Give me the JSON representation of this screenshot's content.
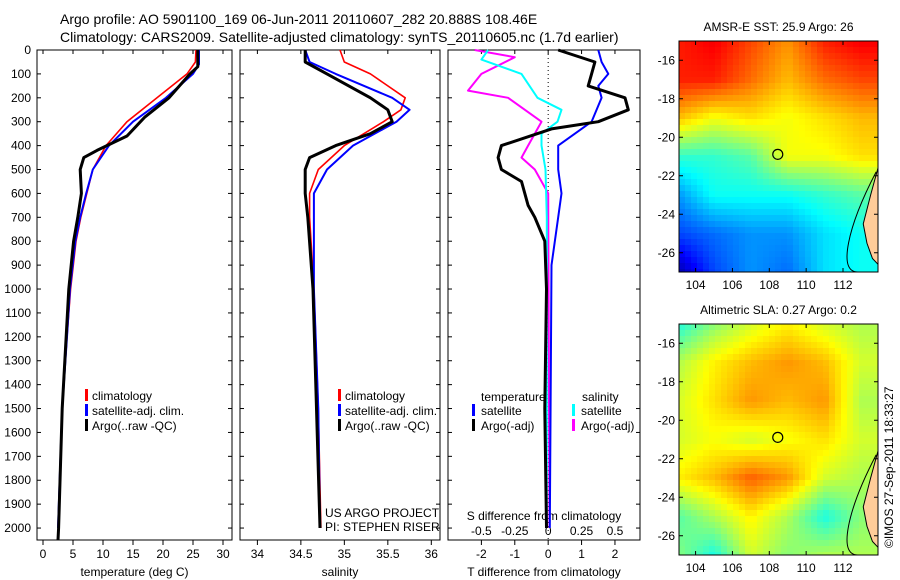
{
  "header": {
    "line1": "Argo profile: AO 5901100_169 06-Jun-2011 20110607_282 20.888S 108.46E",
    "line2": "Climatology: CARS2009. Satellite-adjusted climatology: synTS_20110605.nc (1.7d earlier)"
  },
  "footer_stamp": "©IMOS 27-Sep-2011 18:33:27",
  "colors": {
    "climatology": "#ff0000",
    "satellite": "#0000ff",
    "argo": "#000000",
    "s_satellite": "#00ffff",
    "s_argo": "#ff00ff"
  },
  "chart_data": [
    {
      "type": "line",
      "id": "temperature",
      "xlabel": "temperature (deg C)",
      "ylabel": "",
      "xlim": [
        -1,
        31.5
      ],
      "ylim": [
        2050,
        0
      ],
      "xticks": [
        "0",
        "5",
        "10",
        "15",
        "20",
        "25",
        "30"
      ],
      "yticks": [
        "0",
        "100",
        "200",
        "300",
        "400",
        "500",
        "600",
        "700",
        "800",
        "900",
        "1000",
        "1100",
        "1200",
        "1300",
        "1400",
        "1500",
        "1600",
        "1700",
        "1800",
        "1900",
        "2000"
      ],
      "legend": [
        "climatology",
        "satellite-adj. clim.",
        "Argo(..raw -QC)"
      ],
      "series": [
        {
          "name": "climatology",
          "color": "#ff0000",
          "depth": [
            0,
            50,
            100,
            200,
            300,
            400,
            500,
            600,
            700,
            800,
            1000,
            1200,
            1500,
            2000
          ],
          "values": [
            25.5,
            25.4,
            24,
            19,
            14,
            10.5,
            8.3,
            7.3,
            6.3,
            5.5,
            4.6,
            4,
            3.2,
            2.5
          ]
        },
        {
          "name": "satellite-adj. clim.",
          "color": "#0000ff",
          "depth": [
            0,
            60,
            100,
            200,
            300,
            400,
            500,
            600,
            700,
            800,
            1000,
            1200,
            1500,
            2000
          ],
          "values": [
            26,
            26,
            25,
            20.5,
            15,
            11,
            8.3,
            7.2,
            6.2,
            5.4,
            4.5,
            4,
            3.2,
            2.5
          ]
        },
        {
          "name": "Argo(..raw -QC)",
          "color": "#000000",
          "depth": [
            0,
            70,
            100,
            200,
            280,
            360,
            420,
            450,
            500,
            600,
            700,
            800,
            1000,
            1500,
            2000,
            2050
          ],
          "values": [
            25.8,
            25.8,
            24.5,
            21,
            17,
            14,
            9,
            6.8,
            6.2,
            6.4,
            5.8,
            5.1,
            4.3,
            3.2,
            2.6,
            2.5
          ]
        }
      ]
    },
    {
      "type": "line",
      "id": "salinity",
      "xlabel": "salinity",
      "xlim": [
        33.8,
        36.1
      ],
      "ylim": [
        2050,
        0
      ],
      "xticks": [
        "34",
        "34.5",
        "35",
        "35.5",
        "36"
      ],
      "legend": [
        "climatology",
        "satellite-adj. clim.",
        "Argo(..raw -QC)"
      ],
      "annotation": [
        "US ARGO PROJECT",
        "PI: STEPHEN RISER"
      ],
      "series": [
        {
          "name": "climatology",
          "color": "#ff0000",
          "depth": [
            0,
            50,
            100,
            200,
            250,
            300,
            400,
            500,
            600,
            700,
            1000,
            1500,
            2000
          ],
          "values": [
            34.95,
            35.0,
            35.3,
            35.7,
            35.65,
            35.45,
            35.0,
            34.7,
            34.6,
            34.6,
            34.65,
            34.7,
            34.73
          ]
        },
        {
          "name": "satellite-adj. clim.",
          "color": "#0000ff",
          "depth": [
            0,
            50,
            100,
            200,
            250,
            300,
            400,
            500,
            600,
            1000,
            1500,
            2000
          ],
          "values": [
            34.55,
            34.6,
            34.9,
            35.55,
            35.75,
            35.6,
            35.1,
            34.8,
            34.65,
            34.65,
            34.7,
            34.72
          ]
        },
        {
          "name": "Argo(..raw -QC)",
          "color": "#000000",
          "depth": [
            0,
            50,
            100,
            200,
            250,
            300,
            350,
            400,
            450,
            500,
            600,
            700,
            1000,
            2000
          ],
          "values": [
            34.55,
            34.55,
            34.8,
            35.3,
            35.5,
            35.55,
            35.3,
            34.9,
            34.6,
            34.55,
            34.55,
            34.58,
            34.64,
            34.72
          ]
        }
      ]
    },
    {
      "type": "line",
      "id": "differences",
      "xlabel": "T difference from climatology",
      "x2label": "S difference from climatology",
      "xlim": [
        -3,
        2.75
      ],
      "ylim": [
        2050,
        0
      ],
      "xticks": [
        "-2",
        "-1",
        "0",
        "1",
        "2"
      ],
      "x2ticks": [
        "-0.5",
        "-0.25",
        "0",
        "0.25",
        "0.5"
      ],
      "legend": {
        "temperature_title": "temperature",
        "salinity_title": "salinity",
        "items": [
          "satellite",
          "Argo(-adj)",
          "satellite",
          "Argo(-adj)"
        ]
      },
      "series": [
        {
          "name": "T satellite",
          "color": "#0000ff",
          "scale": "T",
          "depth": [
            0,
            50,
            100,
            150,
            200,
            300,
            400,
            500,
            600,
            700,
            900,
            2000
          ],
          "values": [
            1.5,
            1.6,
            1.8,
            1.5,
            1.6,
            1.3,
            0.3,
            0.3,
            0.4,
            0.3,
            0.1,
            0.05
          ]
        },
        {
          "name": "T Argo(-adj)",
          "color": "#000000",
          "scale": "T",
          "depth": [
            0,
            50,
            100,
            150,
            200,
            250,
            300,
            330,
            400,
            450,
            500,
            550,
            650,
            700,
            800,
            1000,
            1500,
            2000
          ],
          "values": [
            0.3,
            1.4,
            1.3,
            1.2,
            2.3,
            2.4,
            1.5,
            0.1,
            -1.4,
            -1.5,
            -1.4,
            -0.8,
            -0.6,
            -0.4,
            -0.1,
            -0.05,
            -0.1,
            -0.05
          ]
        },
        {
          "name": "S satellite",
          "color": "#00ffff",
          "scale": "S",
          "depth": [
            0,
            40,
            100,
            200,
            250,
            300,
            350,
            400,
            500,
            700,
            2000
          ],
          "values": [
            -0.45,
            -0.5,
            -0.2,
            -0.08,
            0.1,
            0.07,
            -0.05,
            -0.05,
            -0.02,
            -0.01,
            -0.01
          ]
        },
        {
          "name": "S Argo(-adj)",
          "color": "#ff00ff",
          "scale": "S",
          "depth": [
            0,
            30,
            100,
            170,
            200,
            300,
            400,
            450,
            500,
            600,
            2000
          ],
          "values": [
            -0.55,
            -0.25,
            -0.5,
            -0.6,
            -0.3,
            -0.05,
            -0.15,
            -0.2,
            -0.1,
            0,
            0.01
          ]
        }
      ]
    },
    {
      "type": "heatmap",
      "id": "sst_map",
      "title": "AMSR-E SST: 25.9 Argo: 26",
      "lon": [
        103,
        105,
        107,
        109,
        111,
        113
      ],
      "lat": [
        -15,
        -17,
        -19,
        -21,
        -23,
        -25,
        -27
      ],
      "xticks": [
        "104",
        "106",
        "108",
        "110",
        "112"
      ],
      "yticks": [
        "-16",
        "-18",
        "-20",
        "-22",
        "-24",
        "-26"
      ],
      "xlim": [
        103.1,
        113.9
      ],
      "ylim": [
        -27,
        -15
      ],
      "clim": [
        24.4,
        27.0
      ],
      "argo_position": {
        "lon": 108.46,
        "lat": -20.888
      },
      "values": [
        [
          26.6,
          26.7,
          26.5,
          26.3,
          26.6,
          26.7
        ],
        [
          26.6,
          26.6,
          26.4,
          26.2,
          26.4,
          26.5
        ],
        [
          26.2,
          26.0,
          26.1,
          26.0,
          26.1,
          26.2
        ],
        [
          25.5,
          25.5,
          25.6,
          26.0,
          26.0,
          26.1
        ],
        [
          25.1,
          25.4,
          25.4,
          25.4,
          25.5,
          25.6
        ],
        [
          24.9,
          25.0,
          25.1,
          25.1,
          25.3,
          25.4
        ],
        [
          24.5,
          24.9,
          25.1,
          25.0,
          25.3,
          25.4
        ]
      ]
    },
    {
      "type": "heatmap",
      "id": "sla_map",
      "title": "Altimetric SLA: 0.27 Argo: 0.2",
      "lon": [
        103,
        105,
        107,
        109,
        111,
        113
      ],
      "lat": [
        -15,
        -17,
        -19,
        -21,
        -23,
        -25,
        -27
      ],
      "xticks": [
        "104",
        "106",
        "108",
        "110",
        "112"
      ],
      "yticks": [
        "-16",
        "-18",
        "-20",
        "-22",
        "-24",
        "-26"
      ],
      "xlim": [
        103.1,
        113.9
      ],
      "ylim": [
        -27,
        -15
      ],
      "clim": [
        -0.1,
        0.45
      ],
      "argo_position": {
        "lon": 108.46,
        "lat": -20.888
      },
      "values": [
        [
          0.12,
          0.18,
          0.22,
          0.25,
          0.22,
          0.2
        ],
        [
          0.2,
          0.25,
          0.28,
          0.3,
          0.28,
          0.22
        ],
        [
          0.22,
          0.26,
          0.3,
          0.28,
          0.3,
          0.2
        ],
        [
          0.22,
          0.24,
          0.22,
          0.24,
          0.26,
          0.22
        ],
        [
          0.25,
          0.28,
          0.33,
          0.3,
          0.22,
          0.2
        ],
        [
          0.15,
          0.2,
          0.25,
          0.2,
          0.12,
          0.18
        ],
        [
          0.18,
          0.12,
          0.22,
          0.18,
          0.2,
          0.2
        ]
      ]
    }
  ]
}
